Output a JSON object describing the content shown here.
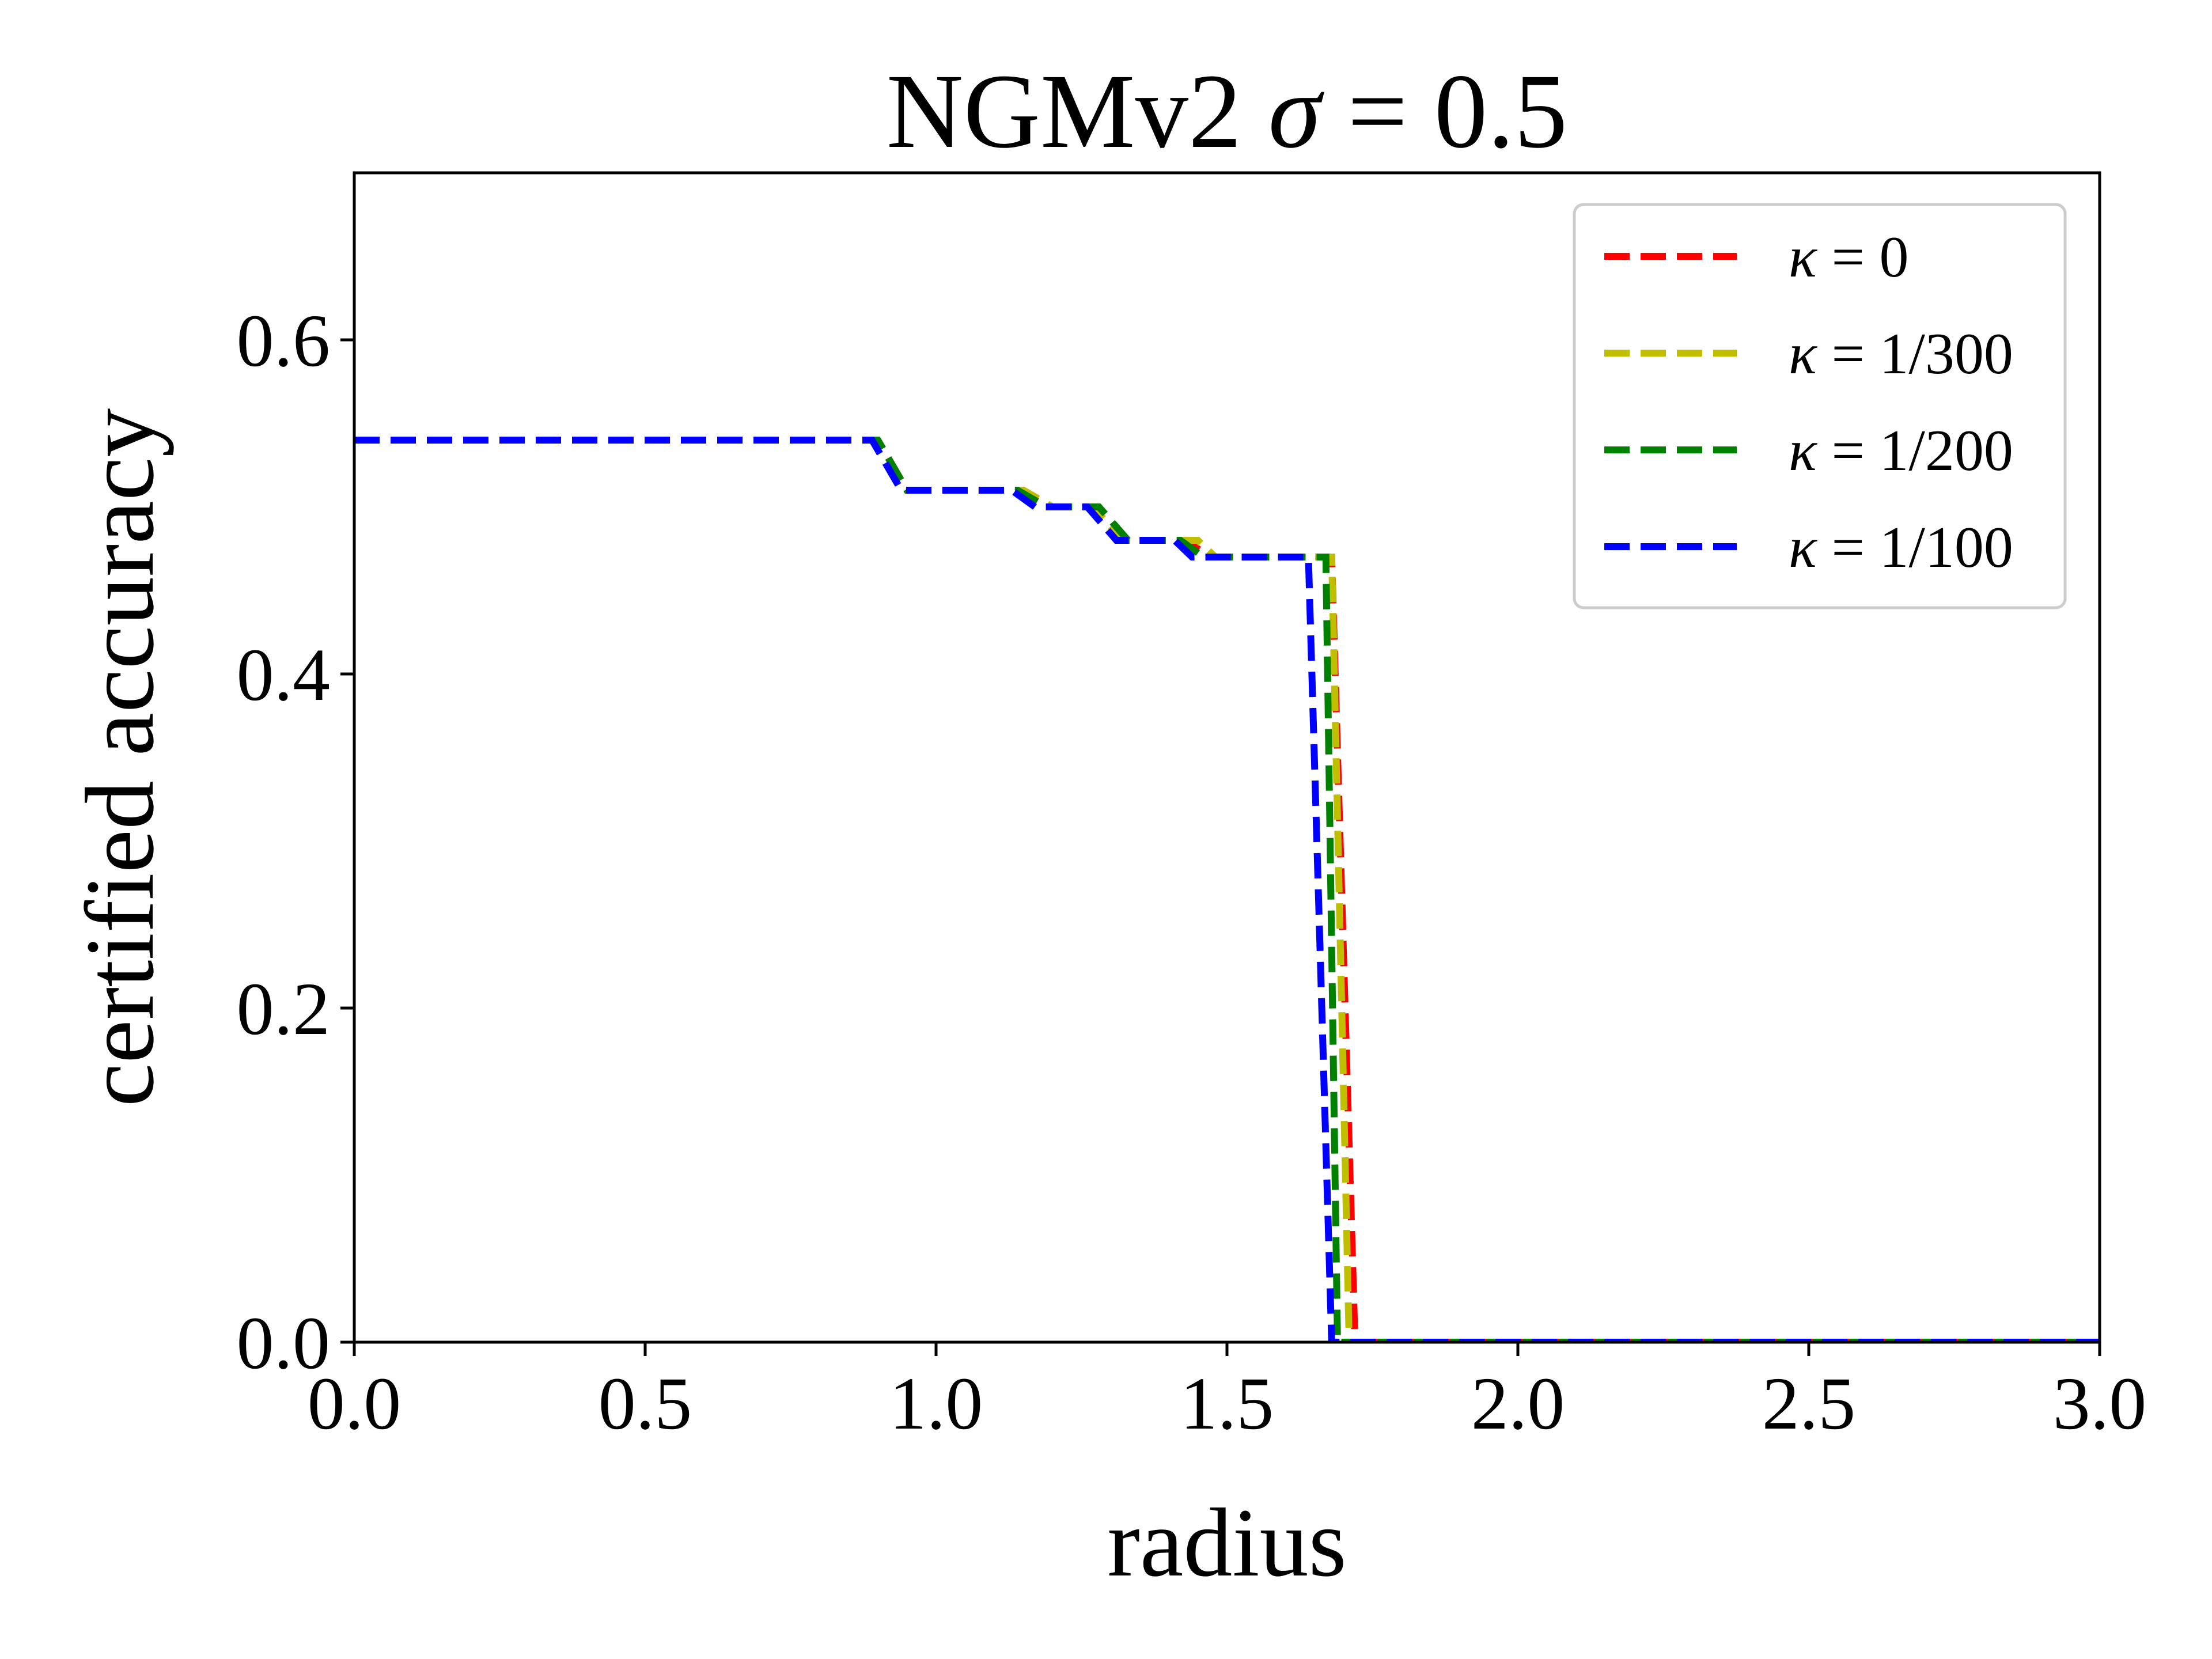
{
  "chart_data": {
    "type": "line",
    "title": "NGMv2 σ = 0.5",
    "title_parts": {
      "prefix": "NGMv2 ",
      "symbol": "σ",
      "suffix": " = 0.5"
    },
    "xlabel": "radius",
    "ylabel": "certified accuracy",
    "xlim": [
      0,
      3
    ],
    "ylim": [
      0,
      0.7
    ],
    "x_ticks": [
      0.0,
      0.5,
      1.0,
      1.5,
      2.0,
      2.5,
      3.0
    ],
    "x_tick_labels": [
      "0.0",
      "0.5",
      "1.0",
      "1.5",
      "2.0",
      "2.5",
      "3.0"
    ],
    "y_ticks": [
      0.0,
      0.2,
      0.4,
      0.6
    ],
    "y_tick_labels": [
      "0.0",
      "0.2",
      "0.4",
      "0.6"
    ],
    "grid": false,
    "legend_position": "top-right",
    "line_style": "dashed",
    "series": [
      {
        "name": "κ = 0",
        "symbol": "κ",
        "value_label": " = 0",
        "color": "#ff0000",
        "points": [
          [
            0,
            0.54
          ],
          [
            0.9,
            0.54
          ],
          [
            0.95,
            0.51
          ],
          [
            1.15,
            0.51
          ],
          [
            1.2,
            0.5
          ],
          [
            1.27,
            0.5
          ],
          [
            1.32,
            0.48
          ],
          [
            1.43,
            0.48
          ],
          [
            1.47,
            0.47
          ],
          [
            1.68,
            0.47
          ],
          [
            1.72,
            0.0
          ],
          [
            3.0,
            0.0
          ]
        ]
      },
      {
        "name": "κ = 1/300",
        "symbol": "κ",
        "value_label": " = 1/300",
        "color": "#bfbf00",
        "points": [
          [
            0,
            0.54
          ],
          [
            0.9,
            0.54
          ],
          [
            0.95,
            0.51
          ],
          [
            1.15,
            0.51
          ],
          [
            1.2,
            0.5
          ],
          [
            1.27,
            0.5
          ],
          [
            1.32,
            0.48
          ],
          [
            1.45,
            0.48
          ],
          [
            1.48,
            0.47
          ],
          [
            1.68,
            0.47
          ],
          [
            1.71,
            0.0
          ],
          [
            3.0,
            0.0
          ]
        ]
      },
      {
        "name": "κ = 1/200",
        "symbol": "κ",
        "value_label": " = 1/200",
        "color": "#008000",
        "points": [
          [
            0,
            0.54
          ],
          [
            0.9,
            0.54
          ],
          [
            0.95,
            0.51
          ],
          [
            1.14,
            0.51
          ],
          [
            1.19,
            0.5
          ],
          [
            1.28,
            0.5
          ],
          [
            1.33,
            0.48
          ],
          [
            1.42,
            0.48
          ],
          [
            1.46,
            0.47
          ],
          [
            1.67,
            0.47
          ],
          [
            1.69,
            0.0
          ],
          [
            3.0,
            0.0
          ]
        ]
      },
      {
        "name": "κ = 1/100",
        "symbol": "κ",
        "value_label": " = 1/100",
        "color": "#0000ff",
        "points": [
          [
            0,
            0.54
          ],
          [
            0.89,
            0.54
          ],
          [
            0.94,
            0.51
          ],
          [
            1.13,
            0.51
          ],
          [
            1.17,
            0.5
          ],
          [
            1.26,
            0.5
          ],
          [
            1.31,
            0.48
          ],
          [
            1.41,
            0.48
          ],
          [
            1.44,
            0.47
          ],
          [
            1.64,
            0.47
          ],
          [
            1.68,
            0.0
          ],
          [
            3.0,
            0.0
          ]
        ]
      }
    ]
  }
}
